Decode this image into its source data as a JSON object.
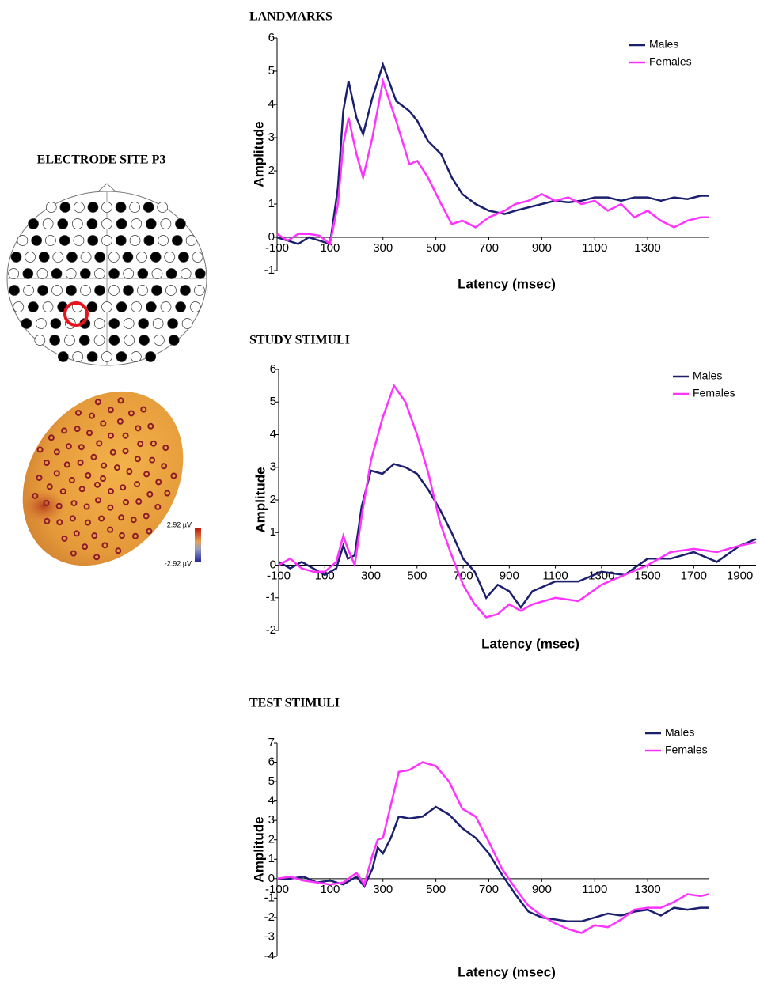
{
  "topography": {
    "title": "ELECTRODE SITE P3",
    "scale_labels": [
      "2.92 µV",
      "-2.92 µV"
    ]
  },
  "chart_data": [
    {
      "type": "line",
      "title": "LANDMARKS",
      "x_label": "Latency (msec)",
      "y_label": "Amplitude",
      "x": [
        -100,
        -60,
        -20,
        20,
        60,
        100,
        130,
        150,
        170,
        200,
        225,
        260,
        300,
        350,
        400,
        430,
        470,
        520,
        560,
        600,
        650,
        700,
        760,
        800,
        850,
        900,
        950,
        1000,
        1050,
        1100,
        1150,
        1200,
        1250,
        1300,
        1350,
        1400,
        1450,
        1500,
        1530
      ],
      "series": [
        {
          "name": "Males",
          "color": "#1b1f6e",
          "values": [
            0,
            -0.1,
            -0.2,
            0,
            -0.1,
            -0.2,
            1.5,
            3.8,
            4.7,
            3.6,
            3.1,
            4.2,
            5.2,
            4.1,
            3.8,
            3.5,
            2.9,
            2.5,
            1.8,
            1.3,
            1.0,
            0.8,
            0.7,
            0.8,
            0.9,
            1.0,
            1.1,
            1.05,
            1.1,
            1.2,
            1.2,
            1.1,
            1.2,
            1.2,
            1.1,
            1.2,
            1.15,
            1.25,
            1.25
          ]
        },
        {
          "name": "Females",
          "color": "#ff33ff",
          "values": [
            0.1,
            -0.1,
            0.1,
            0.1,
            0.05,
            -0.2,
            1.0,
            2.8,
            3.6,
            2.5,
            1.8,
            3.0,
            4.7,
            3.5,
            2.2,
            2.3,
            1.8,
            1.0,
            0.4,
            0.5,
            0.3,
            0.6,
            0.8,
            1.0,
            1.1,
            1.3,
            1.1,
            1.2,
            1.0,
            1.1,
            0.8,
            1.0,
            0.6,
            0.8,
            0.5,
            0.3,
            0.5,
            0.6,
            0.6
          ]
        }
      ],
      "xlim": [
        -100,
        1530
      ],
      "xticks": [
        -100,
        100,
        300,
        500,
        700,
        900,
        1100,
        1300
      ],
      "ylim": [
        -1,
        6
      ],
      "yticks": [
        -1,
        0,
        1,
        2,
        3,
        4,
        5,
        6
      ],
      "legend": "top-right"
    },
    {
      "type": "line",
      "title": "STUDY STIMULI",
      "x_label": "Latency (msec)",
      "y_label": "Amplitude",
      "x": [
        -100,
        -50,
        0,
        50,
        100,
        150,
        180,
        200,
        230,
        260,
        300,
        350,
        400,
        450,
        500,
        550,
        600,
        650,
        700,
        750,
        800,
        850,
        900,
        950,
        1000,
        1100,
        1200,
        1300,
        1400,
        1500,
        1600,
        1700,
        1800,
        1900,
        1970
      ],
      "series": [
        {
          "name": "Males",
          "color": "#1b1f6e",
          "values": [
            0.1,
            -0.1,
            0.1,
            -0.1,
            -0.3,
            -0.1,
            0.6,
            0.2,
            0.3,
            1.8,
            2.9,
            2.8,
            3.1,
            3.0,
            2.8,
            2.3,
            1.7,
            1.0,
            0.2,
            -0.2,
            -1.0,
            -0.6,
            -0.8,
            -1.3,
            -0.8,
            -0.5,
            -0.5,
            -0.2,
            -0.3,
            0.2,
            0.2,
            0.4,
            0.1,
            0.6,
            0.8
          ]
        },
        {
          "name": "Females",
          "color": "#ff33ff",
          "values": [
            0.0,
            0.2,
            -0.1,
            -0.2,
            -0.2,
            0.1,
            0.9,
            0.5,
            0.0,
            1.5,
            3.2,
            4.5,
            5.5,
            5.0,
            4.0,
            2.8,
            1.3,
            0.3,
            -0.6,
            -1.2,
            -1.6,
            -1.5,
            -1.2,
            -1.4,
            -1.2,
            -1.0,
            -1.1,
            -0.6,
            -0.3,
            0.0,
            0.4,
            0.5,
            0.4,
            0.6,
            0.7
          ]
        }
      ],
      "xlim": [
        -100,
        1970
      ],
      "xticks": [
        -100,
        100,
        300,
        500,
        700,
        900,
        1100,
        1300,
        1500,
        1700,
        1900
      ],
      "ylim": [
        -2,
        6
      ],
      "yticks": [
        -2,
        -1,
        0,
        1,
        2,
        3,
        4,
        5,
        6
      ],
      "legend": "top-right"
    },
    {
      "type": "line",
      "title": "TEST STIMULI",
      "x_label": "Latency (msec)",
      "y_label": "Amplitude",
      "x": [
        -100,
        -50,
        0,
        50,
        100,
        150,
        200,
        230,
        260,
        280,
        300,
        330,
        360,
        400,
        450,
        500,
        550,
        600,
        650,
        700,
        750,
        800,
        850,
        900,
        950,
        1000,
        1050,
        1100,
        1150,
        1200,
        1250,
        1300,
        1350,
        1400,
        1450,
        1500,
        1530
      ],
      "series": [
        {
          "name": "Males",
          "color": "#1b1f6e",
          "values": [
            0,
            0,
            0.1,
            -0.2,
            -0.1,
            -0.3,
            0.1,
            -0.4,
            0.5,
            1.6,
            1.3,
            2.1,
            3.2,
            3.1,
            3.2,
            3.7,
            3.3,
            2.6,
            2.1,
            1.3,
            0.2,
            -0.8,
            -1.7,
            -2.0,
            -2.1,
            -2.2,
            -2.2,
            -2.0,
            -1.8,
            -1.9,
            -1.7,
            -1.6,
            -1.9,
            -1.5,
            -1.6,
            -1.5,
            -1.5
          ]
        },
        {
          "name": "Females",
          "color": "#ff33ff",
          "values": [
            0,
            0.1,
            -0.1,
            -0.2,
            -0.3,
            -0.2,
            0.3,
            -0.3,
            1.2,
            2.0,
            2.1,
            3.8,
            5.5,
            5.6,
            6.0,
            5.8,
            5.0,
            3.6,
            3.2,
            1.9,
            0.5,
            -0.5,
            -1.4,
            -1.9,
            -2.3,
            -2.6,
            -2.8,
            -2.4,
            -2.5,
            -2.1,
            -1.6,
            -1.5,
            -1.5,
            -1.2,
            -0.8,
            -0.9,
            -0.8
          ]
        }
      ],
      "xlim": [
        -100,
        1530
      ],
      "xticks": [
        -100,
        100,
        300,
        500,
        700,
        900,
        1100,
        1300
      ],
      "ylim": [
        -4,
        7
      ],
      "yticks": [
        -4,
        -3,
        -2,
        -1,
        0,
        1,
        2,
        3,
        4,
        5,
        6,
        7
      ],
      "legend": "top-right"
    }
  ]
}
